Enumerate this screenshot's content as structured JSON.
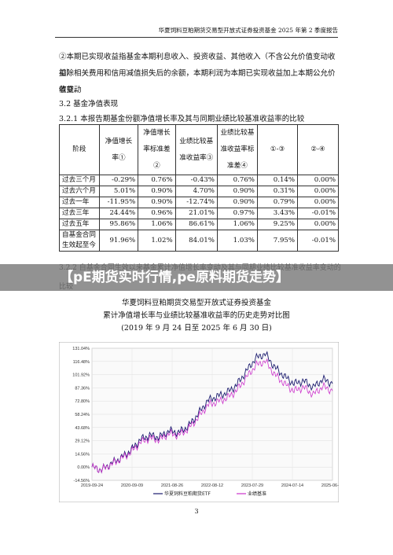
{
  "header": "华夏饲料豆粕期货交易型开放式证券投资基金 2025 年第 2 季度报告",
  "note_lines": [
    "②本期已实现收益指基金本期利息收入、投资收益、其他收入（不含公允价值变动收益）",
    "扣除相关费用和信用减值损失后的余额，本期利润为本期已实现收益加上本期公允价值变动",
    "收益。"
  ],
  "section_32": "3.2  基金净值表现",
  "section_321": "3.2.1  本报告期基金份额净值增长率及其与同期业绩比较基准收益率的比较",
  "table": {
    "headers": [
      "阶段",
      "净值增长率①",
      "净值增长率标准差②",
      "业绩比较基准收益率③",
      "业绩比较基准收益率标准差④",
      "①-③",
      "②-④"
    ],
    "rows": [
      [
        "过去三个月",
        "-0.29%",
        "0.76%",
        "-0.43%",
        "0.76%",
        "0.14%",
        "0.00%"
      ],
      [
        "过去六个月",
        "5.01%",
        "0.90%",
        "4.70%",
        "0.90%",
        "0.31%",
        "0.00%"
      ],
      [
        "过去一年",
        "-11.95%",
        "0.90%",
        "-12.74%",
        "0.90%",
        "0.79%",
        "0.00%"
      ],
      [
        "过去三年",
        "24.44%",
        "0.96%",
        "21.01%",
        "0.97%",
        "3.43%",
        "-0.01%"
      ],
      [
        "过去五年",
        "95.86%",
        "1.06%",
        "86.61%",
        "1.06%",
        "9.25%",
        "0.00%"
      ],
      [
        "自基金合同生效起至今",
        "91.96%",
        "1.02%",
        "84.01%",
        "1.03%",
        "7.95%",
        "-0.01%"
      ]
    ]
  },
  "banner": "【pE期货实时行情,pe原料期货走势】",
  "under_text_1": "3.2.2  自基金合同生效以来基金累计净值增长率变动及其与同期业绩比较基准收益率变动的",
  "under_text_2": "比较",
  "chart_title_lines": [
    "华夏饲料豆粕期货交易型开放式证券投资基金",
    "累计净值增长率与业绩比较基准收益率的历史走势对比图",
    "(2019 年 9 月 24 日至 2025 年 6 月 30 日)"
  ],
  "chart_data": {
    "type": "line",
    "ylim": [
      -14.56,
      131.04
    ],
    "y_ticks": [
      "131.04%",
      "116.48%",
      "101.92%",
      "87.36%",
      "72.80%",
      "58.24%",
      "43.68%",
      "29.12%",
      "14.56%",
      "0.00%",
      "-14.56%"
    ],
    "x_ticks": [
      "2019-09-24",
      "2020-09-09",
      "2021-08-26",
      "2022-08-12",
      "2023-07-29",
      "2024-07-14",
      "2025-06-30"
    ],
    "series": [
      {
        "name": "华夏饲料豆粕期货ETF",
        "color": "#1a1a6e",
        "x": [
          0,
          0.04,
          0.08,
          0.12,
          0.16,
          0.2,
          0.24,
          0.28,
          0.32,
          0.36,
          0.4,
          0.44,
          0.48,
          0.52,
          0.56,
          0.6,
          0.64,
          0.68,
          0.72,
          0.76,
          0.8,
          0.84,
          0.88,
          0.92,
          0.96,
          1.0
        ],
        "values": [
          0,
          -3,
          4,
          10,
          18,
          30,
          35,
          33,
          40,
          38,
          45,
          58,
          73,
          78,
          82,
          90,
          105,
          120,
          125,
          110,
          100,
          92,
          95,
          88,
          97,
          92
        ]
      },
      {
        "name": "业绩基准",
        "color": "#cc33cc",
        "x": [
          0,
          0.04,
          0.08,
          0.12,
          0.16,
          0.2,
          0.24,
          0.28,
          0.32,
          0.36,
          0.4,
          0.44,
          0.48,
          0.52,
          0.56,
          0.6,
          0.64,
          0.68,
          0.72,
          0.76,
          0.8,
          0.84,
          0.88,
          0.92,
          0.96,
          1.0
        ],
        "values": [
          0,
          -3,
          3,
          9,
          16,
          27,
          32,
          30,
          37,
          35,
          42,
          54,
          68,
          72,
          76,
          84,
          98,
          112,
          117,
          102,
          92,
          84,
          88,
          80,
          89,
          84
        ]
      }
    ],
    "legend": [
      "华夏饲料豆粕期货ETF",
      "业绩基准"
    ],
    "legend_placement": "bottom",
    "grid": true
  },
  "page_number": "3"
}
